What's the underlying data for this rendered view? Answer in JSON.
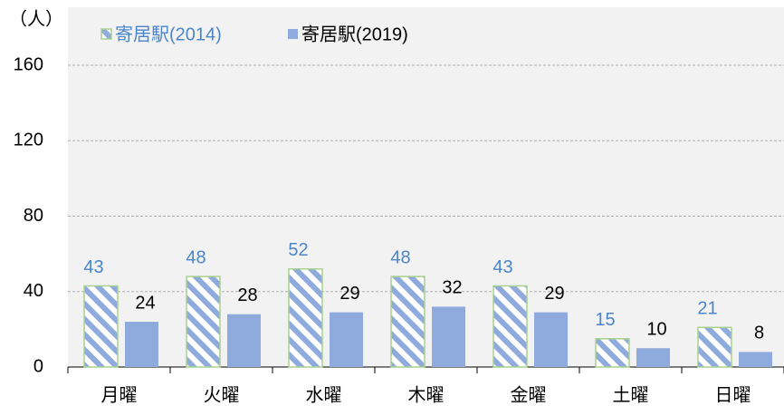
{
  "chart_data": {
    "type": "bar",
    "y_label": "（人）",
    "categories": [
      "月曜",
      "火曜",
      "水曜",
      "木曜",
      "金曜",
      "土曜",
      "日曜"
    ],
    "series": [
      {
        "name": "寄居駅(2014)",
        "color": "#8faadc",
        "edge_color": "#a9d18e",
        "hatch": true,
        "label_color": "#4a86c8",
        "values": [
          43,
          48,
          52,
          48,
          43,
          15,
          21
        ]
      },
      {
        "name": "寄居駅(2019)",
        "color": "#8faadc",
        "hatch": false,
        "label_color": "#000000",
        "values": [
          24,
          28,
          29,
          32,
          29,
          10,
          8
        ]
      }
    ],
    "ylim": [
      0,
      160
    ],
    "yticks": [
      0,
      40,
      80,
      120,
      160
    ],
    "grid": true
  }
}
